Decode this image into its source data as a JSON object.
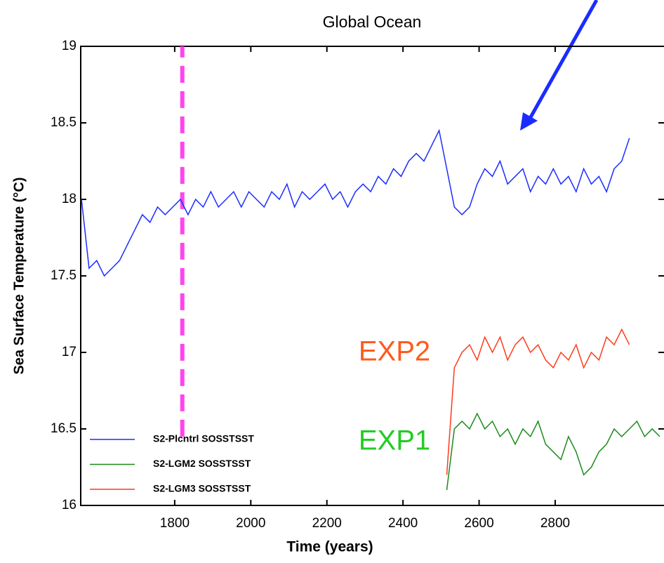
{
  "chart_data": {
    "type": "line",
    "title": "Global Ocean",
    "xlabel": "Time (years)",
    "ylabel": "Sea Surface Temperature (°C)",
    "xlim": [
      1553,
      3086
    ],
    "ylim": [
      16,
      19
    ],
    "xticks": [
      1800,
      2000,
      2200,
      2400,
      2600,
      2800
    ],
    "yticks": [
      16,
      16.5,
      17,
      17.5,
      18,
      18.5,
      19
    ],
    "x": [
      1555,
      1575,
      1595,
      1615,
      1635,
      1655,
      1675,
      1695,
      1715,
      1735,
      1755,
      1775,
      1795,
      1815,
      1835,
      1855,
      1875,
      1895,
      1915,
      1935,
      1955,
      1975,
      1995,
      2015,
      2035,
      2055,
      2075,
      2095,
      2115,
      2135,
      2155,
      2175,
      2195,
      2215,
      2235,
      2255,
      2275,
      2295,
      2315,
      2335,
      2355,
      2375,
      2395,
      2415,
      2435,
      2455,
      2475,
      2495,
      2515,
      2535,
      2555,
      2575,
      2595,
      2615,
      2635,
      2655,
      2675,
      2695,
      2715,
      2735,
      2755,
      2775,
      2795,
      2815,
      2835,
      2855,
      2875,
      2895,
      2915,
      2935,
      2955,
      2975,
      2995,
      3015,
      3035,
      3055,
      3075
    ],
    "series": [
      {
        "name": "S2-Plcntrl SOSSTSST",
        "color": "#1a2cff",
        "values": [
          18.0,
          17.55,
          17.6,
          17.5,
          17.55,
          17.6,
          17.7,
          17.8,
          17.9,
          17.85,
          17.95,
          17.9,
          17.95,
          18.0,
          17.9,
          18.0,
          17.95,
          18.05,
          17.95,
          18.0,
          18.05,
          17.95,
          18.05,
          18.0,
          17.95,
          18.05,
          18.0,
          18.1,
          17.95,
          18.05,
          18.0,
          18.05,
          18.1,
          18.0,
          18.05,
          17.95,
          18.05,
          18.1,
          18.05,
          18.15,
          18.1,
          18.2,
          18.15,
          18.25,
          18.3,
          18.25,
          18.35,
          18.45,
          18.2,
          17.95,
          17.9,
          17.95,
          18.1,
          18.2,
          18.15,
          18.25,
          18.1,
          18.15,
          18.2,
          18.05,
          18.15,
          18.1,
          18.2,
          18.1,
          18.15,
          18.05,
          18.2,
          18.1,
          18.15,
          18.05,
          18.2,
          18.25,
          18.4,
          null,
          null,
          null,
          null
        ]
      },
      {
        "name": "S2-LGM2 SOSSTSST",
        "color": "#1a8a1a",
        "values": [
          null,
          null,
          null,
          null,
          null,
          null,
          null,
          null,
          null,
          null,
          null,
          null,
          null,
          null,
          null,
          null,
          null,
          null,
          null,
          null,
          null,
          null,
          null,
          null,
          null,
          null,
          null,
          null,
          null,
          null,
          null,
          null,
          null,
          null,
          null,
          null,
          null,
          null,
          null,
          null,
          null,
          null,
          null,
          null,
          null,
          null,
          null,
          null,
          16.1,
          16.5,
          16.55,
          16.5,
          16.6,
          16.5,
          16.55,
          16.45,
          16.5,
          16.4,
          16.5,
          16.45,
          16.55,
          16.4,
          16.35,
          16.3,
          16.45,
          16.35,
          16.2,
          16.25,
          16.35,
          16.4,
          16.5,
          16.45,
          16.5,
          16.55,
          16.45,
          16.5,
          16.45
        ]
      },
      {
        "name": "S2-LGM3 SOSSTSST",
        "color": "#ff3a1a",
        "values": [
          null,
          null,
          null,
          null,
          null,
          null,
          null,
          null,
          null,
          null,
          null,
          null,
          null,
          null,
          null,
          null,
          null,
          null,
          null,
          null,
          null,
          null,
          null,
          null,
          null,
          null,
          null,
          null,
          null,
          null,
          null,
          null,
          null,
          null,
          null,
          null,
          null,
          null,
          null,
          null,
          null,
          null,
          null,
          null,
          null,
          null,
          null,
          null,
          16.2,
          16.9,
          17.0,
          17.05,
          16.95,
          17.1,
          17.0,
          17.1,
          16.95,
          17.05,
          17.1,
          17.0,
          17.05,
          16.95,
          16.9,
          17.0,
          16.95,
          17.05,
          16.9,
          17.0,
          16.95,
          17.1,
          17.05,
          17.15,
          17.05,
          null,
          null,
          null,
          null
        ]
      }
    ],
    "reference_line": {
      "x": 1820,
      "y": [
        16.45,
        19
      ],
      "color": "#ff44ee"
    },
    "annotations": [
      {
        "text": "EXP2",
        "color": "#ff5a1e"
      },
      {
        "text": "EXP1",
        "color": "#22cc22"
      }
    ]
  }
}
